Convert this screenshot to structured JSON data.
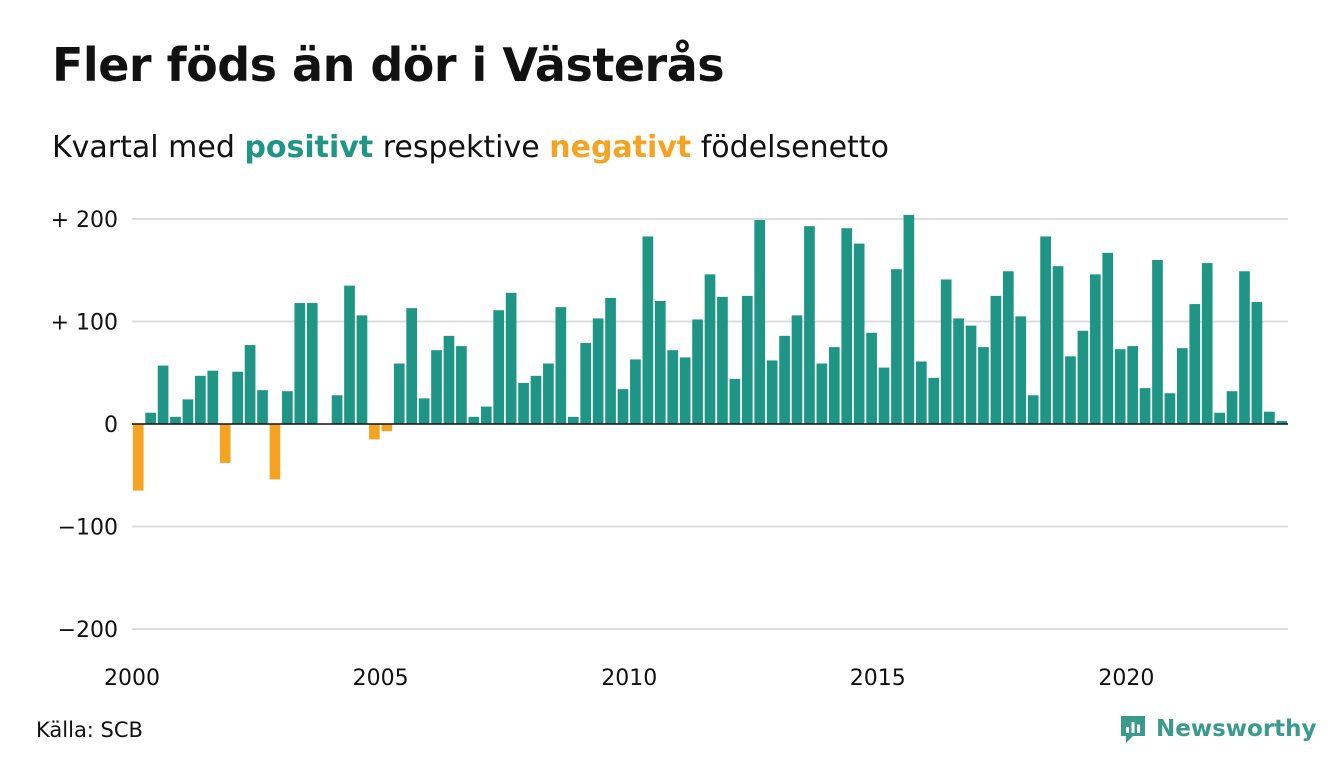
{
  "title": "Fler föds än dör i Västerås",
  "subtitle": {
    "before": "Kvartal med",
    "positive_word": "positivt",
    "middle": "respektive",
    "negative_word": "negativt",
    "after": "födelsenetto"
  },
  "source": "Källa: SCB",
  "brand": {
    "name": "Newsworthy",
    "icon": "newsworthy-logo-icon",
    "color": "#3a9a8c"
  },
  "colors": {
    "positive": "#1e9585",
    "negative": "#f4a422",
    "grid": "#dddddd",
    "zero_line": "#111111"
  },
  "chart_data": {
    "type": "bar",
    "ylim": [
      -200,
      220
    ],
    "y_ticks": [
      {
        "value": 200,
        "label": "+ 200"
      },
      {
        "value": 100,
        "label": "+ 100"
      },
      {
        "value": 0,
        "label": "0"
      },
      {
        "value": -100,
        "label": "−100"
      },
      {
        "value": -200,
        "label": "−200"
      }
    ],
    "x_ticks": [
      "2000",
      "2005",
      "2010",
      "2015",
      "2020"
    ],
    "first_year": 2000,
    "periods_per_year": 4,
    "grid": true,
    "legend": "none",
    "values": [
      -65,
      11,
      57,
      7,
      24,
      47,
      52,
      -38,
      51,
      77,
      33,
      -54,
      32,
      118,
      118,
      0,
      28,
      135,
      106,
      -15,
      -7,
      59,
      113,
      25,
      72,
      86,
      76,
      7,
      17,
      111,
      128,
      40,
      47,
      59,
      114,
      7,
      79,
      103,
      123,
      34,
      63,
      183,
      120,
      72,
      65,
      102,
      146,
      124,
      44,
      125,
      199,
      62,
      86,
      106,
      193,
      59,
      75,
      191,
      176,
      89,
      55,
      151,
      204,
      61,
      45,
      141,
      103,
      96,
      75,
      125,
      149,
      105,
      28,
      183,
      154,
      66,
      91,
      146,
      167,
      73,
      76,
      35,
      160,
      30,
      74,
      117,
      157,
      11,
      32,
      149,
      119,
      12,
      3
    ]
  }
}
